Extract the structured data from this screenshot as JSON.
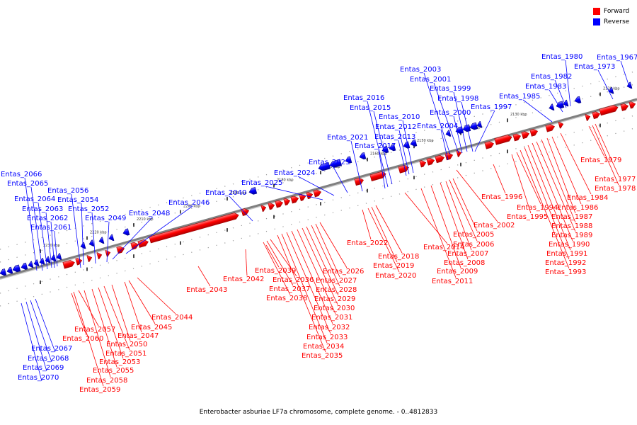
{
  "title": "Enterobacter asburiae LF7a chromosome, complete genome. - 0..4812833",
  "colors": {
    "forward": "#ff0000",
    "reverse": "#0000ff",
    "backbone": "#808080"
  },
  "legend": [
    {
      "label": "Forward",
      "color": "#ff0000"
    },
    {
      "label": "Reverse",
      "color": "#0000ff"
    }
  ],
  "ticks": [
    "2120 kbp",
    "2130 kbp",
    "2140 kbp",
    "2150 kbp",
    "2160 kbp",
    "2170 kbp",
    "2180 kbp",
    "2190 kbp",
    "2200 kbp",
    "2210 kbp",
    "2220 kbp",
    "2230 kbp"
  ],
  "reverse_labels": [
    "Entas_1967",
    "Entas_1973",
    "Entas_1980",
    "Entas_1982",
    "Entas_1983",
    "Entas_1985",
    "Entas_1997",
    "Entas_1998",
    "Entas_1999",
    "Entas_2000",
    "Entas_2001",
    "Entas_2003",
    "Entas_2004",
    "Entas_2010",
    "Entas_2012",
    "Entas_2013",
    "Entas_2015",
    "Entas_2016",
    "Entas_2017",
    "Entas_2021",
    "Entas_2023",
    "Entas_2024",
    "Entas_2025",
    "Entas_2040",
    "Entas_2046",
    "Entas_2048",
    "Entas_2049",
    "Entas_2052",
    "Entas_2054",
    "Entas_2056",
    "Entas_2061",
    "Entas_2062",
    "Entas_2063",
    "Entas_2064",
    "Entas_2065",
    "Entas_2066",
    "Entas_2067",
    "Entas_2068",
    "Entas_2069",
    "Entas_2070"
  ],
  "forward_labels": [
    "Entas_1977",
    "Entas_1978",
    "Entas_1979",
    "Entas_1984",
    "Entas_1986",
    "Entas_1987",
    "Entas_1988",
    "Entas_1989",
    "Entas_1990",
    "Entas_1991",
    "Entas_1992",
    "Entas_1993",
    "Entas_1994",
    "Entas_1995",
    "Entas_1996",
    "Entas_2002",
    "Entas_2005",
    "Entas_2006",
    "Entas_2007",
    "Entas_2008",
    "Entas_2009",
    "Entas_2011",
    "Entas_2014",
    "Entas_2018",
    "Entas_2019",
    "Entas_2020",
    "Entas_2022",
    "Entas_2026",
    "Entas_2027",
    "Entas_2028",
    "Entas_2029",
    "Entas_2030",
    "Entas_2031",
    "Entas_2032",
    "Entas_2033",
    "Entas_2034",
    "Entas_2035",
    "Entas_2036",
    "Entas_2037",
    "Entas_2038",
    "Entas_2039",
    "Entas_2042",
    "Entas_2043",
    "Entas_2044",
    "Entas_2045",
    "Entas_2047",
    "Entas_2050",
    "Entas_2051",
    "Entas_2053",
    "Entas_2055",
    "Entas_2057",
    "Entas_2058",
    "Entas_2059",
    "Entas_2060"
  ]
}
